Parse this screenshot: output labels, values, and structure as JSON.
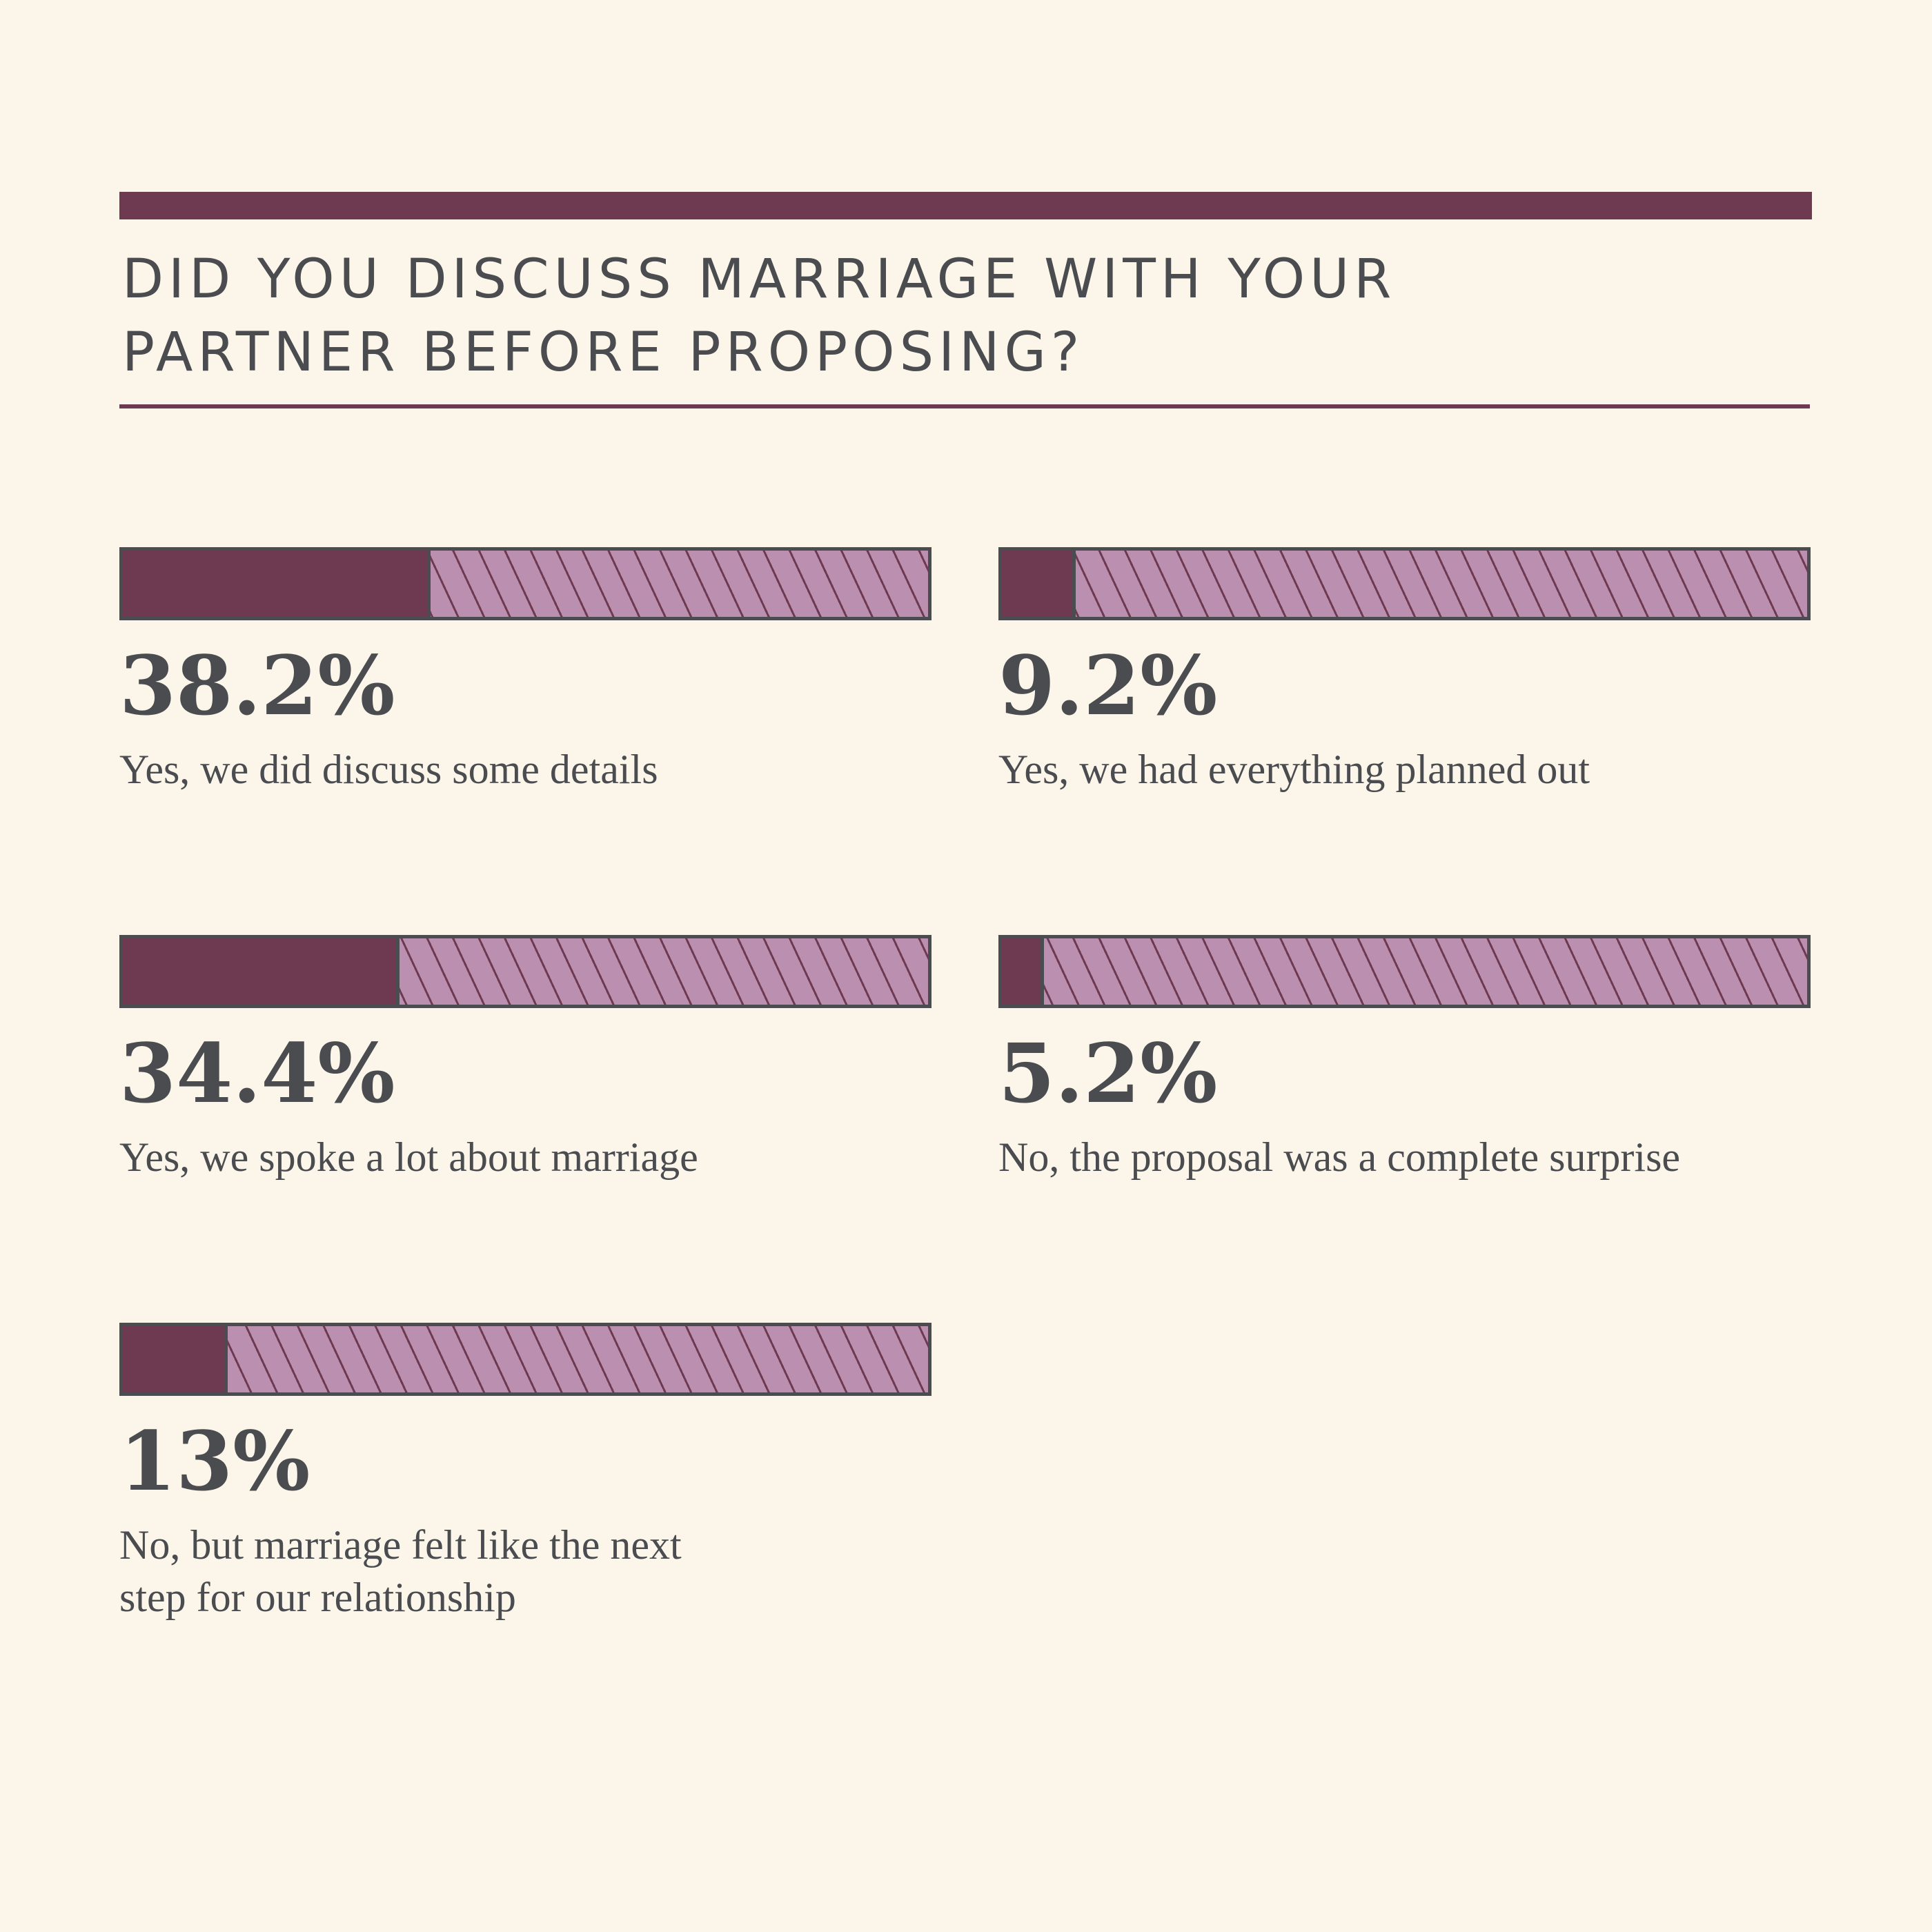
{
  "title_lines": [
    "DID YOU DISCUSS MARRIAGE WITH YOUR",
    "PARTNER BEFORE PROPOSING?"
  ],
  "colors": {
    "background": "#fcf6ea",
    "accent": "#6d3a52",
    "hatch": "#bb8fb0",
    "text": "#4a4c50"
  },
  "chart_data": {
    "type": "bar",
    "title": "DID YOU DISCUSS MARRIAGE WITH YOUR PARTNER BEFORE PROPOSING?",
    "xlabel": "",
    "ylabel": "",
    "ylim": [
      0,
      100
    ],
    "categories": [
      "Yes, we did discuss some details",
      "Yes, we had everything planned out",
      "Yes, we spoke a lot about marriage",
      "No, the proposal was a complete surprise",
      "No, but marriage felt like the next step for our relationship"
    ],
    "values": [
      38.2,
      9.2,
      34.4,
      5.2,
      13
    ],
    "value_labels": [
      "38.2%",
      "9.2%",
      "34.4%",
      "5.2%",
      "13%"
    ],
    "label_lines": [
      [
        "Yes, we did discuss some details"
      ],
      [
        "Yes, we had everything planned out"
      ],
      [
        "Yes, we spoke a lot about marriage"
      ],
      [
        "No, the proposal was a complete surprise"
      ],
      [
        "No, but marriage felt like the next",
        "step for our relationship"
      ]
    ],
    "grid": false,
    "legend": "none"
  }
}
